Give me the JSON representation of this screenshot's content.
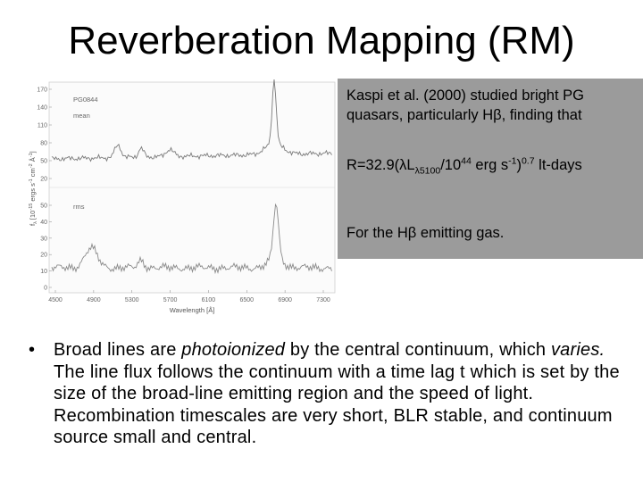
{
  "title": "Reverberation Mapping (RM)",
  "figure": {
    "top_panel": {
      "object": "PG0844",
      "label": "mean",
      "y_ticks": [
        "170",
        "140",
        "110",
        "80",
        "50",
        "20"
      ]
    },
    "bottom_panel": {
      "label": "rms",
      "y_ticks": [
        "50",
        "40",
        "30",
        "20",
        "10",
        "0"
      ]
    },
    "x_ticks": [
      "4500",
      "4900",
      "5300",
      "5700",
      "6100",
      "6500",
      "6900",
      "7300"
    ],
    "xlabel": "Wavelength [Å]",
    "ylabel": "f",
    "ylabel_sub": "λ",
    "ylabel_rest": " [10",
    "ylabel_sup": "-15",
    "ylabel_tail": " ergs s",
    "ylabel_sup2": "-1",
    "ylabel_tail2": " cm",
    "ylabel_sup3": "-2",
    "ylabel_tail3": " Å",
    "ylabel_sup4": "-1",
    "ylabel_end": "]"
  },
  "callout": {
    "para1": "Kaspi et al. (2000) studied bright PG quasars, particularly Hβ, finding that",
    "eq_a": "R=32.9(λL",
    "eq_sub": "λ5100",
    "eq_b": "/10",
    "eq_sup1": "44",
    "eq_c": " erg s",
    "eq_sup2": "-1",
    "eq_d": ")",
    "eq_sup3": "0.7",
    "eq_e": " lt-days",
    "para3": "For the Hβ emitting gas."
  },
  "bullet": {
    "text_a": "Broad lines are ",
    "em_a": "photoionized",
    "text_b": " by the central continuum, which ",
    "em_b": "varies.",
    "text_c": "  The line flux follows the continuum with a time lag t which is set by the size of the broad-line emitting region and the speed of light.  Recombination timescales are very short, BLR stable, and continuum source small and central."
  }
}
